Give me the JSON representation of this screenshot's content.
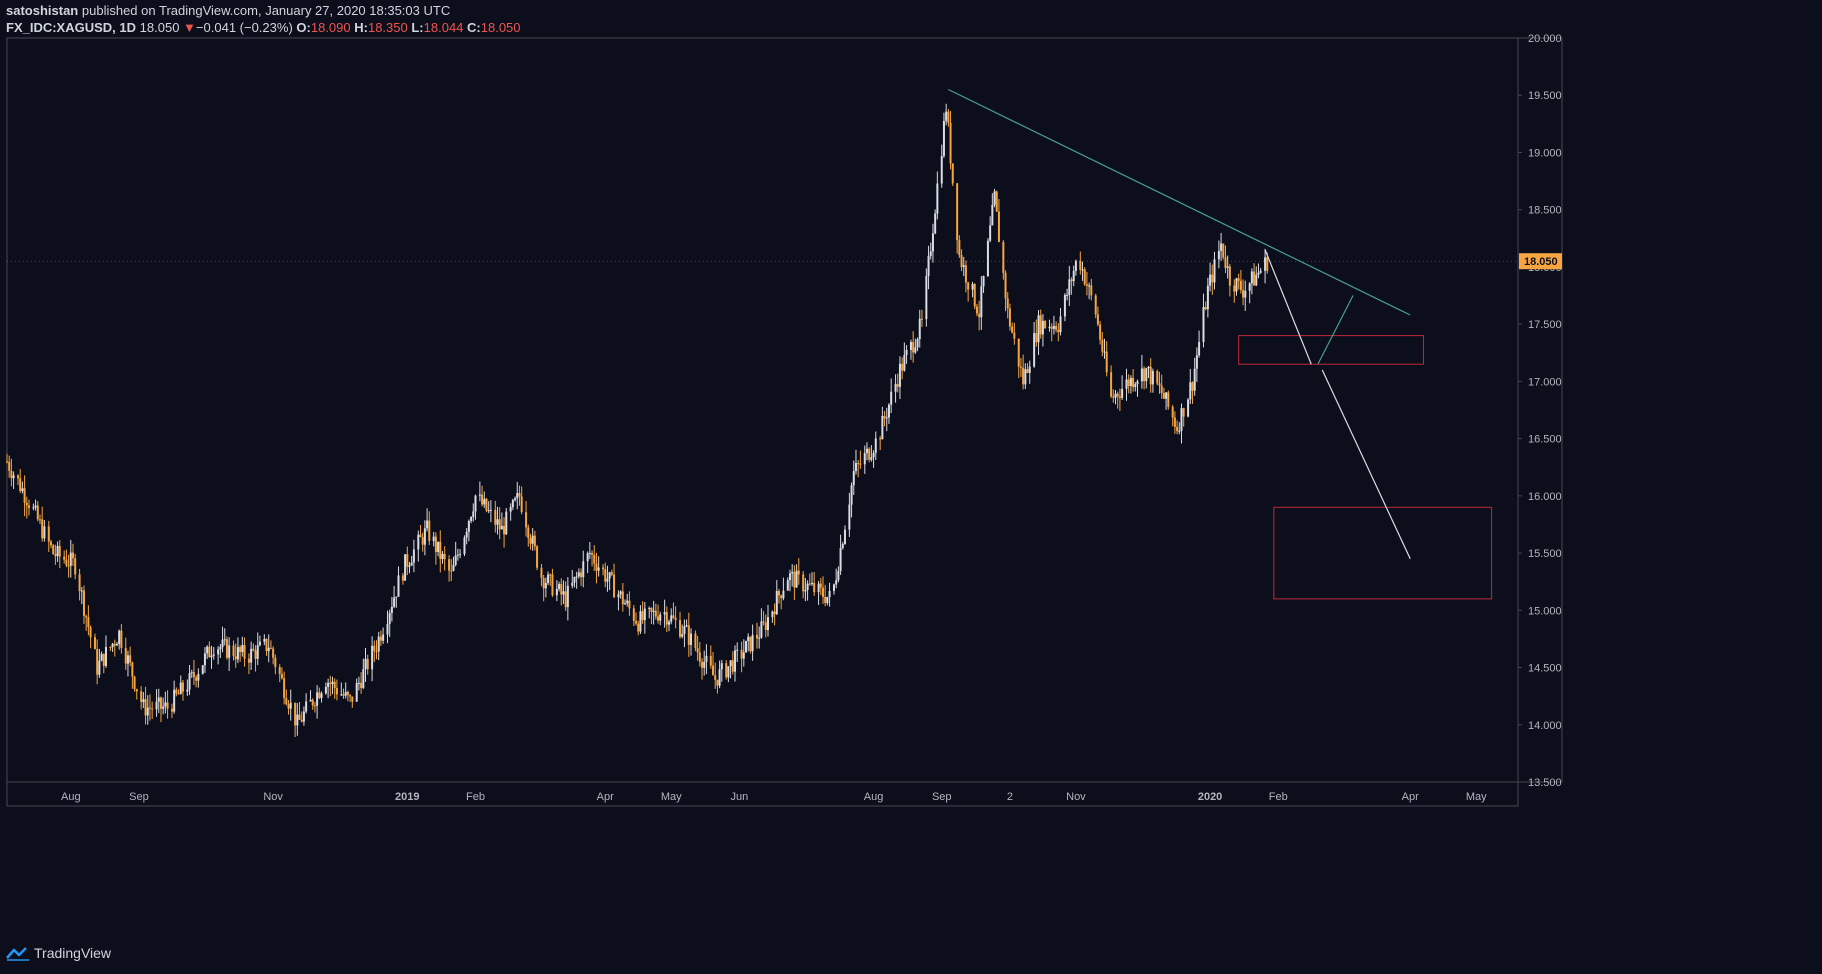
{
  "header": {
    "author": "satoshistan",
    "published_text": "published on TradingView.com, January 27, 2020 18:35:03 UTC",
    "symbol": "FX_IDC:XAGUSD, 1D",
    "last": "18.050",
    "change_arrow": "▼",
    "change": "−0.041 (−0.23%)",
    "o_label": "O:",
    "o_value": "18.090",
    "h_label": "H:",
    "h_value": "18.350",
    "l_label": "L:",
    "l_value": "18.044",
    "c_label": "C:",
    "c_value": "18.050"
  },
  "footer": {
    "brand": "TradingView",
    "logo_icon": "tradingview-logo-icon"
  },
  "colors": {
    "background": "#0c0f1b",
    "up_candle": "#d9dce3",
    "down_candle": "#f7a541",
    "trendline": "#4a9d94",
    "projection": "#d9dce3",
    "zone": "#c0283a",
    "price_badge": "#f7a541",
    "axis_text": "#b2b5be"
  },
  "chart_data": {
    "type": "candlestick",
    "symbol": "FX_IDC:XAGUSD",
    "interval": "1D",
    "y_ticks": [
      "20.000",
      "19.500",
      "19.000",
      "18.500",
      "18.000",
      "17.500",
      "17.000",
      "16.500",
      "16.000",
      "15.500",
      "15.000",
      "14.500",
      "14.000",
      "13.500"
    ],
    "ylim": [
      13.5,
      20.0
    ],
    "x_ticks": [
      {
        "label": "Aug",
        "date": "2018-08-01"
      },
      {
        "label": "Sep",
        "date": "2018-09-01"
      },
      {
        "label": "Nov",
        "date": "2018-11-01"
      },
      {
        "label": "2019",
        "date": "2019-01-01",
        "bold": true
      },
      {
        "label": "Feb",
        "date": "2019-02-01"
      },
      {
        "label": "Apr",
        "date": "2019-04-01"
      },
      {
        "label": "May",
        "date": "2019-05-01"
      },
      {
        "label": "Jun",
        "date": "2019-06-01"
      },
      {
        "label": "Aug",
        "date": "2019-08-01"
      },
      {
        "label": "Sep",
        "date": "2019-09-01"
      },
      {
        "label": "2",
        "date": "2019-10-02"
      },
      {
        "label": "Nov",
        "date": "2019-11-01"
      },
      {
        "label": "2020",
        "date": "2020-01-01",
        "bold": true
      },
      {
        "label": "Feb",
        "date": "2020-02-01"
      },
      {
        "label": "Apr",
        "date": "2020-04-01"
      },
      {
        "label": "May",
        "date": "2020-05-01"
      }
    ],
    "xlim": [
      "2018-07-03",
      "2020-05-20"
    ],
    "price_path": [
      {
        "date": "2018-07-03",
        "price": 16.3
      },
      {
        "date": "2018-07-13",
        "price": 15.95
      },
      {
        "date": "2018-07-24",
        "price": 15.5
      },
      {
        "date": "2018-08-03",
        "price": 15.4
      },
      {
        "date": "2018-08-13",
        "price": 14.5
      },
      {
        "date": "2018-08-23",
        "price": 14.8
      },
      {
        "date": "2018-09-03",
        "price": 14.15
      },
      {
        "date": "2018-09-14",
        "price": 14.15
      },
      {
        "date": "2018-09-25",
        "price": 14.4
      },
      {
        "date": "2018-10-05",
        "price": 14.7
      },
      {
        "date": "2018-10-20",
        "price": 14.6
      },
      {
        "date": "2018-10-30",
        "price": 14.7
      },
      {
        "date": "2018-11-12",
        "price": 14.0
      },
      {
        "date": "2018-11-25",
        "price": 14.4
      },
      {
        "date": "2018-12-06",
        "price": 14.2
      },
      {
        "date": "2018-12-18",
        "price": 14.7
      },
      {
        "date": "2018-12-31",
        "price": 15.4
      },
      {
        "date": "2019-01-10",
        "price": 15.7
      },
      {
        "date": "2019-01-21",
        "price": 15.3
      },
      {
        "date": "2019-02-01",
        "price": 16.0
      },
      {
        "date": "2019-02-13",
        "price": 15.7
      },
      {
        "date": "2019-02-21",
        "price": 16.0
      },
      {
        "date": "2019-03-03",
        "price": 15.3
      },
      {
        "date": "2019-03-14",
        "price": 15.1
      },
      {
        "date": "2019-03-25",
        "price": 15.5
      },
      {
        "date": "2019-04-05",
        "price": 15.2
      },
      {
        "date": "2019-04-16",
        "price": 14.9
      },
      {
        "date": "2019-04-27",
        "price": 15.0
      },
      {
        "date": "2019-05-08",
        "price": 14.8
      },
      {
        "date": "2019-05-21",
        "price": 14.4
      },
      {
        "date": "2019-06-01",
        "price": 14.6
      },
      {
        "date": "2019-06-12",
        "price": 14.85
      },
      {
        "date": "2019-06-23",
        "price": 15.3
      },
      {
        "date": "2019-07-03",
        "price": 15.2
      },
      {
        "date": "2019-07-13",
        "price": 15.1
      },
      {
        "date": "2019-07-23",
        "price": 16.2
      },
      {
        "date": "2019-08-03",
        "price": 16.5
      },
      {
        "date": "2019-08-13",
        "price": 17.1
      },
      {
        "date": "2019-08-23",
        "price": 17.5
      },
      {
        "date": "2019-09-03",
        "price": 19.4
      },
      {
        "date": "2019-09-09",
        "price": 18.1
      },
      {
        "date": "2019-09-18",
        "price": 17.6
      },
      {
        "date": "2019-09-25",
        "price": 18.6
      },
      {
        "date": "2019-10-01",
        "price": 17.6
      },
      {
        "date": "2019-10-08",
        "price": 17.0
      },
      {
        "date": "2019-10-15",
        "price": 17.5
      },
      {
        "date": "2019-10-24",
        "price": 17.5
      },
      {
        "date": "2019-11-02",
        "price": 18.1
      },
      {
        "date": "2019-11-10",
        "price": 17.6
      },
      {
        "date": "2019-11-17",
        "price": 16.85
      },
      {
        "date": "2019-11-25",
        "price": 17.0
      },
      {
        "date": "2019-12-03",
        "price": 17.1
      },
      {
        "date": "2019-12-10",
        "price": 16.9
      },
      {
        "date": "2019-12-17",
        "price": 16.6
      },
      {
        "date": "2019-12-24",
        "price": 17.0
      },
      {
        "date": "2019-12-31",
        "price": 17.8
      },
      {
        "date": "2020-01-06",
        "price": 18.2
      },
      {
        "date": "2020-01-10",
        "price": 17.9
      },
      {
        "date": "2020-01-16",
        "price": 17.8
      },
      {
        "date": "2020-01-21",
        "price": 17.9
      },
      {
        "date": "2020-01-27",
        "price": 18.05
      }
    ],
    "current_price": 18.05,
    "drawings": {
      "trendline": {
        "from": {
          "date": "2019-09-04",
          "price": 19.55
        },
        "to": {
          "date": "2020-04-01",
          "price": 17.58
        }
      },
      "projection": [
        {
          "date": "2020-01-26",
          "price": 18.15
        },
        {
          "date": "2020-02-16",
          "price": 17.15
        },
        {
          "date": "2020-02-19",
          "price": 17.15
        },
        {
          "date": "2020-03-06",
          "price": 17.75
        }
      ],
      "projection_down": {
        "from": {
          "date": "2020-02-21",
          "price": 17.1
        },
        "to": {
          "date": "2020-04-01",
          "price": 15.45
        }
      },
      "zones": [
        {
          "from": "2020-01-14",
          "to": "2020-04-07",
          "top": 17.4,
          "bottom": 17.15
        },
        {
          "from": "2020-01-30",
          "to": "2020-05-08",
          "top": 15.9,
          "bottom": 15.1
        }
      ]
    }
  }
}
